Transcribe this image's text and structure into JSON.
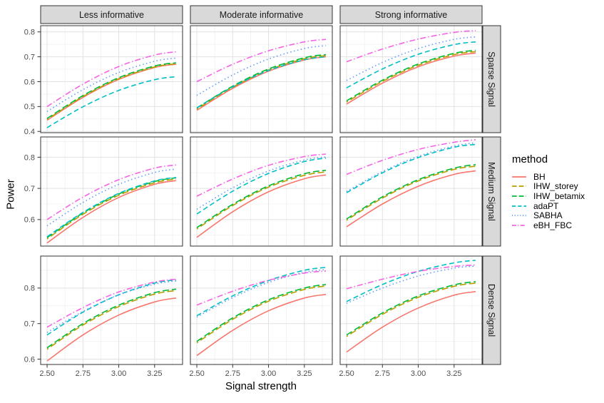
{
  "chart_data": {
    "type": "line",
    "title": "",
    "xlabel": "Signal strength",
    "ylabel": "Power",
    "x": [
      2.5,
      2.75,
      3.0,
      3.25,
      3.4
    ],
    "x_domain": [
      2.455,
      3.445
    ],
    "x_ticks": {
      "values": [
        2.5,
        2.75,
        3.0,
        3.25
      ],
      "labels": [
        "2.50",
        "2.75",
        "3.00",
        "3.25"
      ]
    },
    "x_minor": [
      2.625,
      2.875,
      3.125,
      3.375
    ],
    "col_facets": [
      "Less informative",
      "Moderate informative",
      "Strong informative"
    ],
    "row_facets": [
      {
        "label": "Sparse Signal",
        "y_domain": [
          0.395,
          0.825
        ],
        "y_tick_values": [
          0.4,
          0.5,
          0.6,
          0.7,
          0.8
        ],
        "y_tick_labels": [
          "0.4",
          "0.5",
          "0.6",
          "0.7",
          "0.8"
        ],
        "y_minor": [
          0.45,
          0.55,
          0.65,
          0.75
        ]
      },
      {
        "label": "Medium Signal",
        "y_domain": [
          0.515,
          0.865
        ],
        "y_tick_values": [
          0.6,
          0.7,
          0.8
        ],
        "y_tick_labels": [
          "0.6",
          "0.7",
          "0.8"
        ],
        "y_minor": [
          0.55,
          0.65,
          0.75,
          0.85
        ]
      },
      {
        "label": "Dense Signal",
        "y_domain": [
          0.585,
          0.89
        ],
        "y_tick_values": [
          0.6,
          0.7,
          0.8
        ],
        "y_tick_labels": [
          "0.6",
          "0.7",
          "0.8"
        ],
        "y_minor": [
          0.65,
          0.75,
          0.85
        ]
      }
    ],
    "legend": {
      "title": "method",
      "entries": [
        {
          "name": "BH",
          "color": "#F8766D",
          "dash": ""
        },
        {
          "name": "IHW_storey",
          "color": "#B79F00",
          "dash": "9,4",
          "dashoffset": 6.5
        },
        {
          "name": "IHW_betamix",
          "color": "#00BA38",
          "dash": "9,4"
        },
        {
          "name": "adaPT",
          "color": "#00BFC4",
          "dash": "7,4"
        },
        {
          "name": "SABHA",
          "color": "#619CFF",
          "dash": "1.5,3.5"
        },
        {
          "name": "eBH_FBC",
          "color": "#F564E3",
          "dash": "8,3,1.5,3"
        }
      ]
    },
    "panels": [
      {
        "row": "Sparse Signal",
        "col": "Less informative",
        "series": {
          "BH": [
            0.445,
            0.537,
            0.609,
            0.657,
            0.67
          ],
          "IHW_storey": [
            0.448,
            0.54,
            0.612,
            0.659,
            0.672
          ],
          "IHW_betamix": [
            0.452,
            0.544,
            0.616,
            0.663,
            0.676
          ],
          "adaPT": [
            0.415,
            0.499,
            0.565,
            0.608,
            0.62
          ],
          "SABHA": [
            0.48,
            0.568,
            0.637,
            0.682,
            0.695
          ],
          "eBH_FBC": [
            0.5,
            0.59,
            0.661,
            0.707,
            0.72
          ]
        }
      },
      {
        "row": "Sparse Signal",
        "col": "Moderate informative",
        "series": {
          "BH": [
            0.485,
            0.573,
            0.642,
            0.687,
            0.7
          ],
          "IHW_storey": [
            0.49,
            0.578,
            0.647,
            0.692,
            0.705
          ],
          "IHW_betamix": [
            0.494,
            0.582,
            0.651,
            0.696,
            0.709
          ],
          "adaPT": [
            0.495,
            0.579,
            0.645,
            0.688,
            0.7
          ],
          "SABHA": [
            0.545,
            0.627,
            0.691,
            0.733,
            0.745
          ],
          "eBH_FBC": [
            0.6,
            0.67,
            0.724,
            0.76,
            0.77
          ]
        }
      },
      {
        "row": "Sparse Signal",
        "col": "Strong informative",
        "series": {
          "BH": [
            0.51,
            0.594,
            0.66,
            0.703,
            0.715
          ],
          "IHW_storey": [
            0.518,
            0.601,
            0.666,
            0.709,
            0.721
          ],
          "IHW_betamix": [
            0.523,
            0.606,
            0.671,
            0.714,
            0.726
          ],
          "adaPT": [
            0.575,
            0.651,
            0.71,
            0.749,
            0.76
          ],
          "SABHA": [
            0.605,
            0.677,
            0.733,
            0.77,
            0.78
          ],
          "eBH_FBC": [
            0.68,
            0.731,
            0.771,
            0.798,
            0.805
          ]
        }
      },
      {
        "row": "Medium Signal",
        "col": "Less informative",
        "series": {
          "BH": [
            0.525,
            0.607,
            0.671,
            0.713,
            0.725
          ],
          "IHW_storey": [
            0.538,
            0.617,
            0.678,
            0.718,
            0.73
          ],
          "IHW_betamix": [
            0.542,
            0.621,
            0.682,
            0.722,
            0.734
          ],
          "adaPT": [
            0.545,
            0.623,
            0.684,
            0.724,
            0.735
          ],
          "SABHA": [
            0.58,
            0.655,
            0.713,
            0.751,
            0.762
          ],
          "eBH_FBC": [
            0.6,
            0.672,
            0.728,
            0.765,
            0.775
          ]
        }
      },
      {
        "row": "Medium Signal",
        "col": "Moderate informative",
        "series": {
          "BH": [
            0.543,
            0.625,
            0.689,
            0.731,
            0.743
          ],
          "IHW_storey": [
            0.57,
            0.645,
            0.704,
            0.742,
            0.753
          ],
          "IHW_betamix": [
            0.574,
            0.649,
            0.708,
            0.747,
            0.758
          ],
          "adaPT": [
            0.618,
            0.691,
            0.748,
            0.786,
            0.797
          ],
          "SABHA": [
            0.633,
            0.702,
            0.756,
            0.791,
            0.801
          ],
          "eBH_FBC": [
            0.675,
            0.73,
            0.774,
            0.802,
            0.81
          ]
        }
      },
      {
        "row": "Medium Signal",
        "col": "Strong informative",
        "series": {
          "BH": [
            0.577,
            0.65,
            0.707,
            0.745,
            0.756
          ],
          "IHW_storey": [
            0.598,
            0.669,
            0.724,
            0.761,
            0.771
          ],
          "IHW_betamix": [
            0.602,
            0.673,
            0.728,
            0.765,
            0.776
          ],
          "adaPT": [
            0.686,
            0.75,
            0.799,
            0.832,
            0.841
          ],
          "SABHA": [
            0.69,
            0.754,
            0.803,
            0.836,
            0.846
          ],
          "eBH_FBC": [
            0.745,
            0.79,
            0.825,
            0.848,
            0.856
          ]
        }
      },
      {
        "row": "Dense Signal",
        "col": "Less informative",
        "series": {
          "BH": [
            0.595,
            0.668,
            0.724,
            0.761,
            0.772
          ],
          "IHW_storey": [
            0.628,
            0.696,
            0.748,
            0.783,
            0.793
          ],
          "IHW_betamix": [
            0.632,
            0.7,
            0.752,
            0.787,
            0.797
          ],
          "adaPT": [
            0.668,
            0.732,
            0.781,
            0.814,
            0.823
          ],
          "SABHA": [
            0.675,
            0.734,
            0.781,
            0.811,
            0.82
          ],
          "eBH_FBC": [
            0.69,
            0.745,
            0.789,
            0.817,
            0.825
          ]
        }
      },
      {
        "row": "Dense Signal",
        "col": "Moderate informative",
        "series": {
          "BH": [
            0.61,
            0.681,
            0.736,
            0.772,
            0.782
          ],
          "IHW_storey": [
            0.646,
            0.712,
            0.763,
            0.796,
            0.806
          ],
          "IHW_betamix": [
            0.65,
            0.716,
            0.767,
            0.8,
            0.81
          ],
          "adaPT": [
            0.722,
            0.778,
            0.821,
            0.85,
            0.858
          ],
          "SABHA": [
            0.718,
            0.773,
            0.816,
            0.844,
            0.852
          ],
          "eBH_FBC": [
            0.752,
            0.791,
            0.822,
            0.842,
            0.848
          ]
        }
      },
      {
        "row": "Dense Signal",
        "col": "Strong informative",
        "series": {
          "BH": [
            0.62,
            0.69,
            0.744,
            0.78,
            0.79
          ],
          "IHW_storey": [
            0.664,
            0.726,
            0.774,
            0.805,
            0.814
          ],
          "IHW_betamix": [
            0.668,
            0.73,
            0.778,
            0.809,
            0.818
          ],
          "adaPT": [
            0.762,
            0.81,
            0.847,
            0.871,
            0.878
          ],
          "SABHA": [
            0.757,
            0.8,
            0.834,
            0.856,
            0.862
          ],
          "eBH_FBC": [
            0.798,
            0.825,
            0.847,
            0.861,
            0.865
          ]
        }
      }
    ],
    "style": {
      "strip_fill": "#D9D9D9",
      "strip_border": "#333333",
      "panel_border": "#333333",
      "grid_major": "#E2E2E2",
      "grid_minor": "#F0F0F0",
      "tick_color": "#333333",
      "tick_label_color": "#4D4D4D",
      "strip_text_color": "#1A1A1A"
    }
  }
}
